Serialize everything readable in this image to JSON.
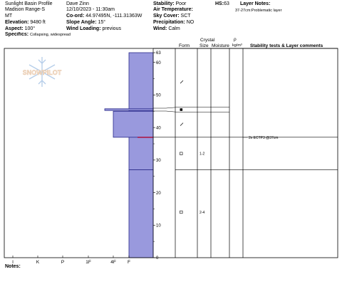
{
  "header": {
    "profile_name": "Sunlight Basin Profile",
    "location": "Madison Range-S",
    "state": "MT",
    "elevation_label": "Elevation:",
    "elevation_value": "9480 ft",
    "aspect_label": "Aspect:",
    "aspect_value": "100°",
    "specifics_label": "Specifics:",
    "specifics_value": "Collapsing, widespread",
    "observer": "Dave Zinn",
    "datetime": "12/10/2023 - 11:30am",
    "coord_label": "Co-ord:",
    "coord_value": "44.97495N, -111.31363W",
    "slope_label": "Slope Angle:",
    "slope_value": "15°",
    "wind_loading_label": "Wind Loading:",
    "wind_loading_value": "previous",
    "stability_label": "Stability:",
    "stability_value": "Poor",
    "air_temp_label": "Air Temperature:",
    "air_temp_value": "",
    "sky_label": "Sky Cover:",
    "sky_value": "SCT",
    "precip_label": "Precipitation:",
    "precip_value": "NO",
    "wind_label": "Wind:",
    "wind_value": "Calm",
    "hs_label": "HS:",
    "hs_value": "63",
    "layer_notes_label": "Layer Notes:",
    "layer_notes": "37-27cm:Problematic layer"
  },
  "watermark": "SNOWPILOT",
  "columns": {
    "crystal": "Crystal",
    "form": "Form",
    "size": "Size",
    "moisture": "Moisture",
    "rho": "ρ",
    "density_unit": "kg/m³",
    "stability_comments": "Stability tests & Layer comments"
  },
  "chart_data": {
    "type": "bar",
    "title": "",
    "y_axis": {
      "range": [
        0,
        63
      ],
      "ticks": [
        0,
        10,
        20,
        30,
        40,
        50,
        60,
        63
      ]
    },
    "x_axis": {
      "hardness_categories": [
        "I",
        "K",
        "P",
        "1F",
        "4F",
        "F"
      ]
    },
    "layers": [
      {
        "top": 63,
        "bottom": 45,
        "hardness": "F"
      },
      {
        "top": 45,
        "bottom": 37,
        "hardness": "4F"
      },
      {
        "top": 37,
        "bottom": 27,
        "hardness": "F"
      },
      {
        "top": 27,
        "bottom": 0,
        "hardness": "F"
      }
    ],
    "thin_layer": {
      "depth": 45.5,
      "hardness": "1F"
    },
    "weak_layer_marker_depth": 37,
    "grain_rows": [
      {
        "depth": 54,
        "symbol": "/",
        "size": ""
      },
      {
        "depth": 45.5,
        "symbol": "■",
        "size": ""
      },
      {
        "depth": 41,
        "symbol": "/",
        "size": ""
      },
      {
        "depth": 32,
        "symbol": "□",
        "size": "1-2"
      },
      {
        "depth": 14,
        "symbol": "□",
        "size": "2-4"
      }
    ],
    "stability_tests": [
      {
        "depth": 37,
        "label": "2x ECTP3 @37cm"
      }
    ],
    "colors": {
      "fill": "#9999dd",
      "stroke": "#2a2a8a",
      "weak_layer": "#aa2255"
    }
  },
  "notes_label": "Notes:"
}
